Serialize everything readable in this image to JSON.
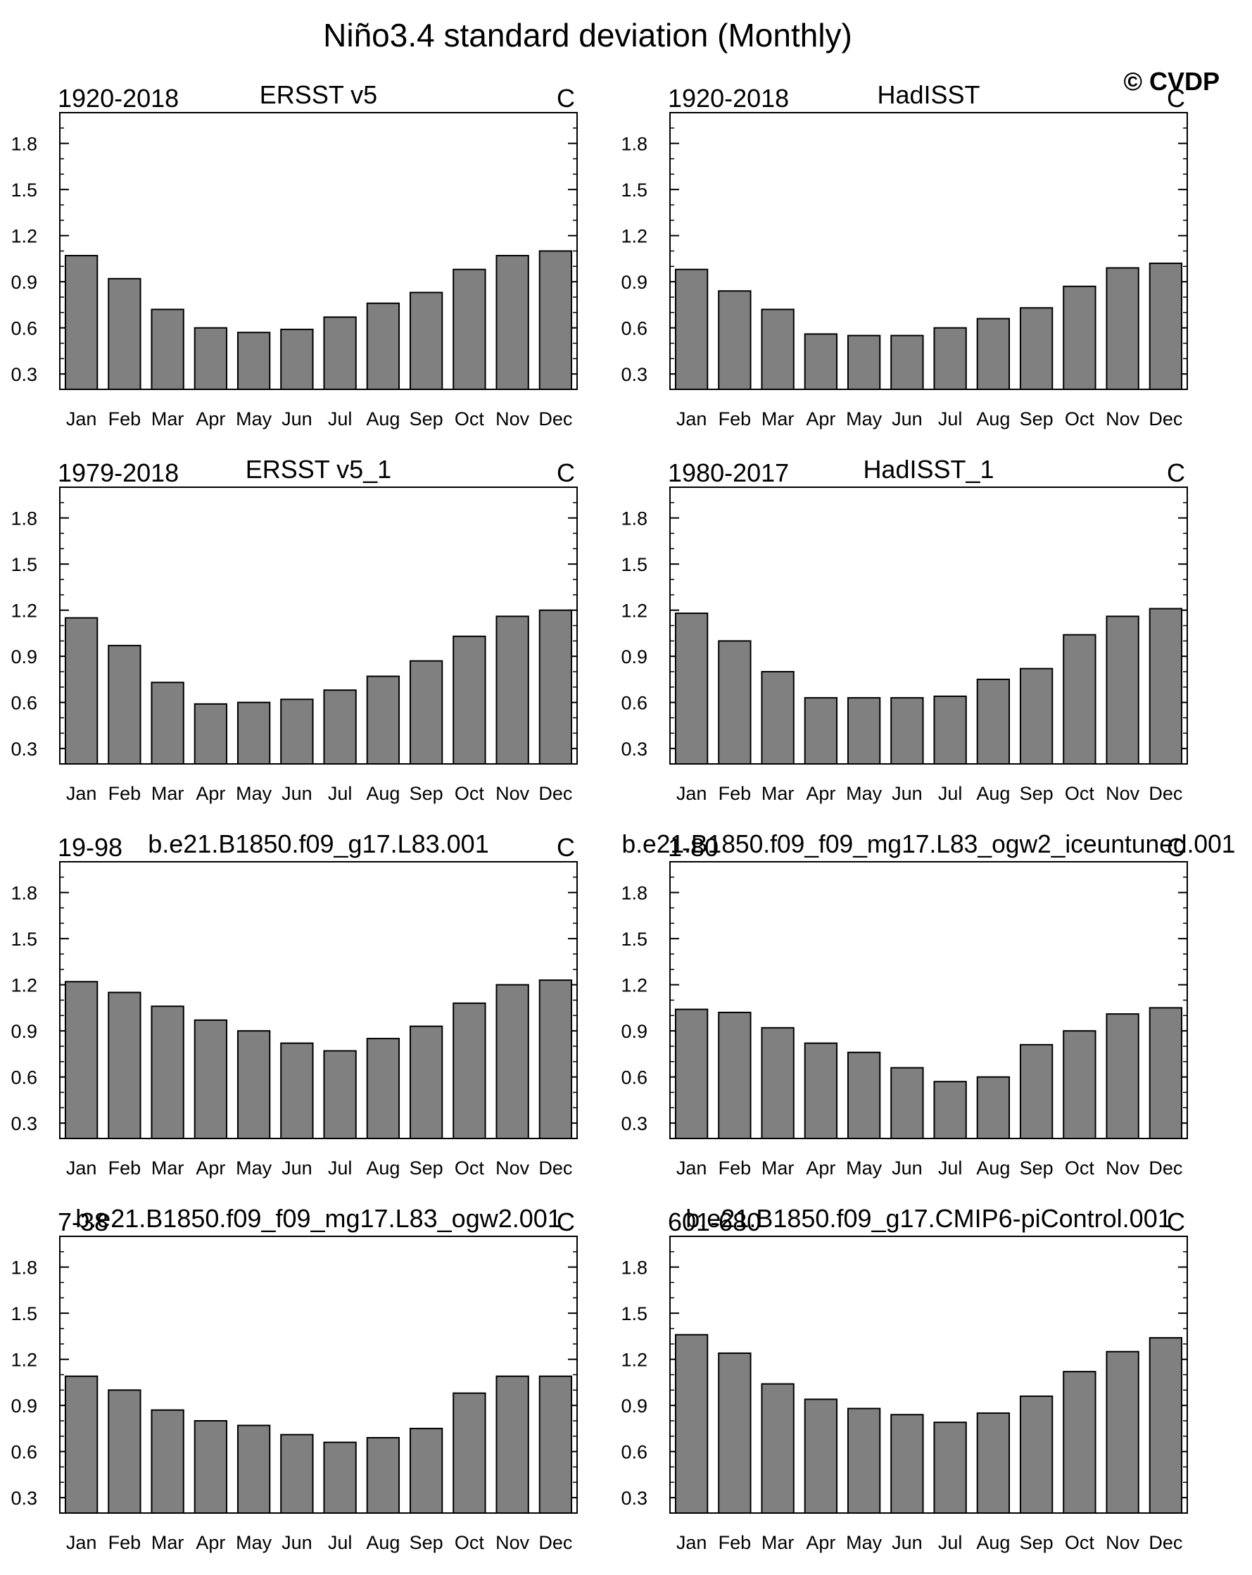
{
  "title": "Niño3.4 standard deviation (Monthly)",
  "watermark": "© CVDP",
  "chart_data": [
    {
      "type": "bar",
      "left": "1920-2018",
      "center": "ERSST v5",
      "right": "C",
      "categories": [
        "Jan",
        "Feb",
        "Mar",
        "Apr",
        "May",
        "Jun",
        "Jul",
        "Aug",
        "Sep",
        "Oct",
        "Nov",
        "Dec"
      ],
      "values": [
        1.07,
        0.92,
        0.72,
        0.6,
        0.57,
        0.59,
        0.67,
        0.76,
        0.83,
        0.98,
        1.07,
        1.1
      ],
      "yticks": [
        "0.3",
        "0.6",
        "0.9",
        "1.2",
        "1.5",
        "1.8"
      ],
      "ylim": [
        0.2,
        2.0
      ]
    },
    {
      "type": "bar",
      "left": "1920-2018",
      "center": "HadISST",
      "right": "C",
      "categories": [
        "Jan",
        "Feb",
        "Mar",
        "Apr",
        "May",
        "Jun",
        "Jul",
        "Aug",
        "Sep",
        "Oct",
        "Nov",
        "Dec"
      ],
      "values": [
        0.98,
        0.84,
        0.72,
        0.56,
        0.55,
        0.55,
        0.6,
        0.66,
        0.73,
        0.87,
        0.99,
        1.02
      ],
      "yticks": [
        "0.3",
        "0.6",
        "0.9",
        "1.2",
        "1.5",
        "1.8"
      ],
      "ylim": [
        0.2,
        2.0
      ]
    },
    {
      "type": "bar",
      "left": "1979-2018",
      "center": "ERSST v5_1",
      "right": "C",
      "categories": [
        "Jan",
        "Feb",
        "Mar",
        "Apr",
        "May",
        "Jun",
        "Jul",
        "Aug",
        "Sep",
        "Oct",
        "Nov",
        "Dec"
      ],
      "values": [
        1.15,
        0.97,
        0.73,
        0.59,
        0.6,
        0.62,
        0.68,
        0.77,
        0.87,
        1.03,
        1.16,
        1.2
      ],
      "yticks": [
        "0.3",
        "0.6",
        "0.9",
        "1.2",
        "1.5",
        "1.8"
      ],
      "ylim": [
        0.2,
        2.0
      ]
    },
    {
      "type": "bar",
      "left": "1980-2017",
      "center": "HadISST_1",
      "right": "C",
      "categories": [
        "Jan",
        "Feb",
        "Mar",
        "Apr",
        "May",
        "Jun",
        "Jul",
        "Aug",
        "Sep",
        "Oct",
        "Nov",
        "Dec"
      ],
      "values": [
        1.18,
        1.0,
        0.8,
        0.63,
        0.63,
        0.63,
        0.64,
        0.75,
        0.82,
        1.04,
        1.16,
        1.21
      ],
      "yticks": [
        "0.3",
        "0.6",
        "0.9",
        "1.2",
        "1.5",
        "1.8"
      ],
      "ylim": [
        0.2,
        2.0
      ]
    },
    {
      "type": "bar",
      "left": "19-98",
      "center": "b.e21.B1850.f09_g17.L83.001",
      "right": "C",
      "categories": [
        "Jan",
        "Feb",
        "Mar",
        "Apr",
        "May",
        "Jun",
        "Jul",
        "Aug",
        "Sep",
        "Oct",
        "Nov",
        "Dec"
      ],
      "values": [
        1.22,
        1.15,
        1.06,
        0.97,
        0.9,
        0.82,
        0.77,
        0.85,
        0.93,
        1.08,
        1.2,
        1.23
      ],
      "yticks": [
        "0.3",
        "0.6",
        "0.9",
        "1.2",
        "1.5",
        "1.8"
      ],
      "ylim": [
        0.2,
        2.0
      ]
    },
    {
      "type": "bar",
      "left": "1-80",
      "center": "b.e21.B1850.f09_f09_mg17.L83_ogw2_iceuntuned.001",
      "right": "C",
      "categories": [
        "Jan",
        "Feb",
        "Mar",
        "Apr",
        "May",
        "Jun",
        "Jul",
        "Aug",
        "Sep",
        "Oct",
        "Nov",
        "Dec"
      ],
      "values": [
        1.04,
        1.02,
        0.92,
        0.82,
        0.76,
        0.66,
        0.57,
        0.6,
        0.81,
        0.9,
        1.01,
        1.05
      ],
      "yticks": [
        "0.3",
        "0.6",
        "0.9",
        "1.2",
        "1.5",
        "1.8"
      ],
      "ylim": [
        0.2,
        2.0
      ]
    },
    {
      "type": "bar",
      "left": "7-38",
      "center": "b.e21.B1850.f09_f09_mg17.L83_ogw2.001",
      "right": "C",
      "categories": [
        "Jan",
        "Feb",
        "Mar",
        "Apr",
        "May",
        "Jun",
        "Jul",
        "Aug",
        "Sep",
        "Oct",
        "Nov",
        "Dec"
      ],
      "values": [
        1.09,
        1.0,
        0.87,
        0.8,
        0.77,
        0.71,
        0.66,
        0.69,
        0.75,
        0.98,
        1.09,
        1.09
      ],
      "yticks": [
        "0.3",
        "0.6",
        "0.9",
        "1.2",
        "1.5",
        "1.8"
      ],
      "ylim": [
        0.2,
        2.0
      ]
    },
    {
      "type": "bar",
      "left": "601-680",
      "center": "b.e21.B1850.f09_g17.CMIP6-piControl.001",
      "right": "C",
      "categories": [
        "Jan",
        "Feb",
        "Mar",
        "Apr",
        "May",
        "Jun",
        "Jul",
        "Aug",
        "Sep",
        "Oct",
        "Nov",
        "Dec"
      ],
      "values": [
        1.36,
        1.24,
        1.04,
        0.94,
        0.88,
        0.84,
        0.79,
        0.85,
        0.96,
        1.12,
        1.25,
        1.34
      ],
      "yticks": [
        "0.3",
        "0.6",
        "0.9",
        "1.2",
        "1.5",
        "1.8"
      ],
      "ylim": [
        0.2,
        2.0
      ]
    }
  ]
}
